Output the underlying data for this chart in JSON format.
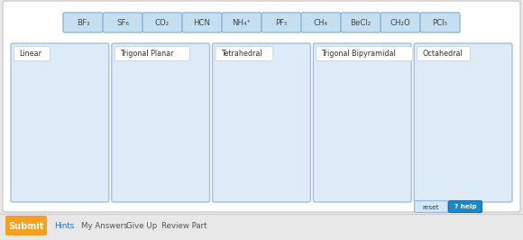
{
  "bg_color": "#e8e8e8",
  "panel_bg": "#ffffff",
  "panel_border": "#cccccc",
  "card_bg": "#ddeaf7",
  "card_border": "#aabfd4",
  "chip_bg": "#c5dff0",
  "chip_border": "#90b8d5",
  "chip_text_color": "#444444",
  "box_label_color": "#333333",
  "chips": [
    "BF₃",
    "SF₆",
    "CO₂",
    "HCN",
    "NH₄⁺",
    "PF₅",
    "CH₄",
    "BeCl₂",
    "CH₂O",
    "PCl₅"
  ],
  "boxes": [
    "Linear",
    "Trigonal Planar",
    "Tetrahedral",
    "Trigonal Bipyramidal",
    "Octahedral"
  ],
  "submit_color": "#f5a020",
  "submit_text": "Submit",
  "bottom_links": [
    "Hints",
    "My Answers",
    "Give Up",
    "Review Part"
  ],
  "hints_color": "#1a6fcc",
  "links_color": "#555555",
  "reset_btn_text": "reset",
  "help_btn_text": "? help",
  "reset_bg": "#d0e8f8",
  "reset_border": "#90b8d5",
  "help_bg": "#1a88cc",
  "help_border": "#1a6faa"
}
